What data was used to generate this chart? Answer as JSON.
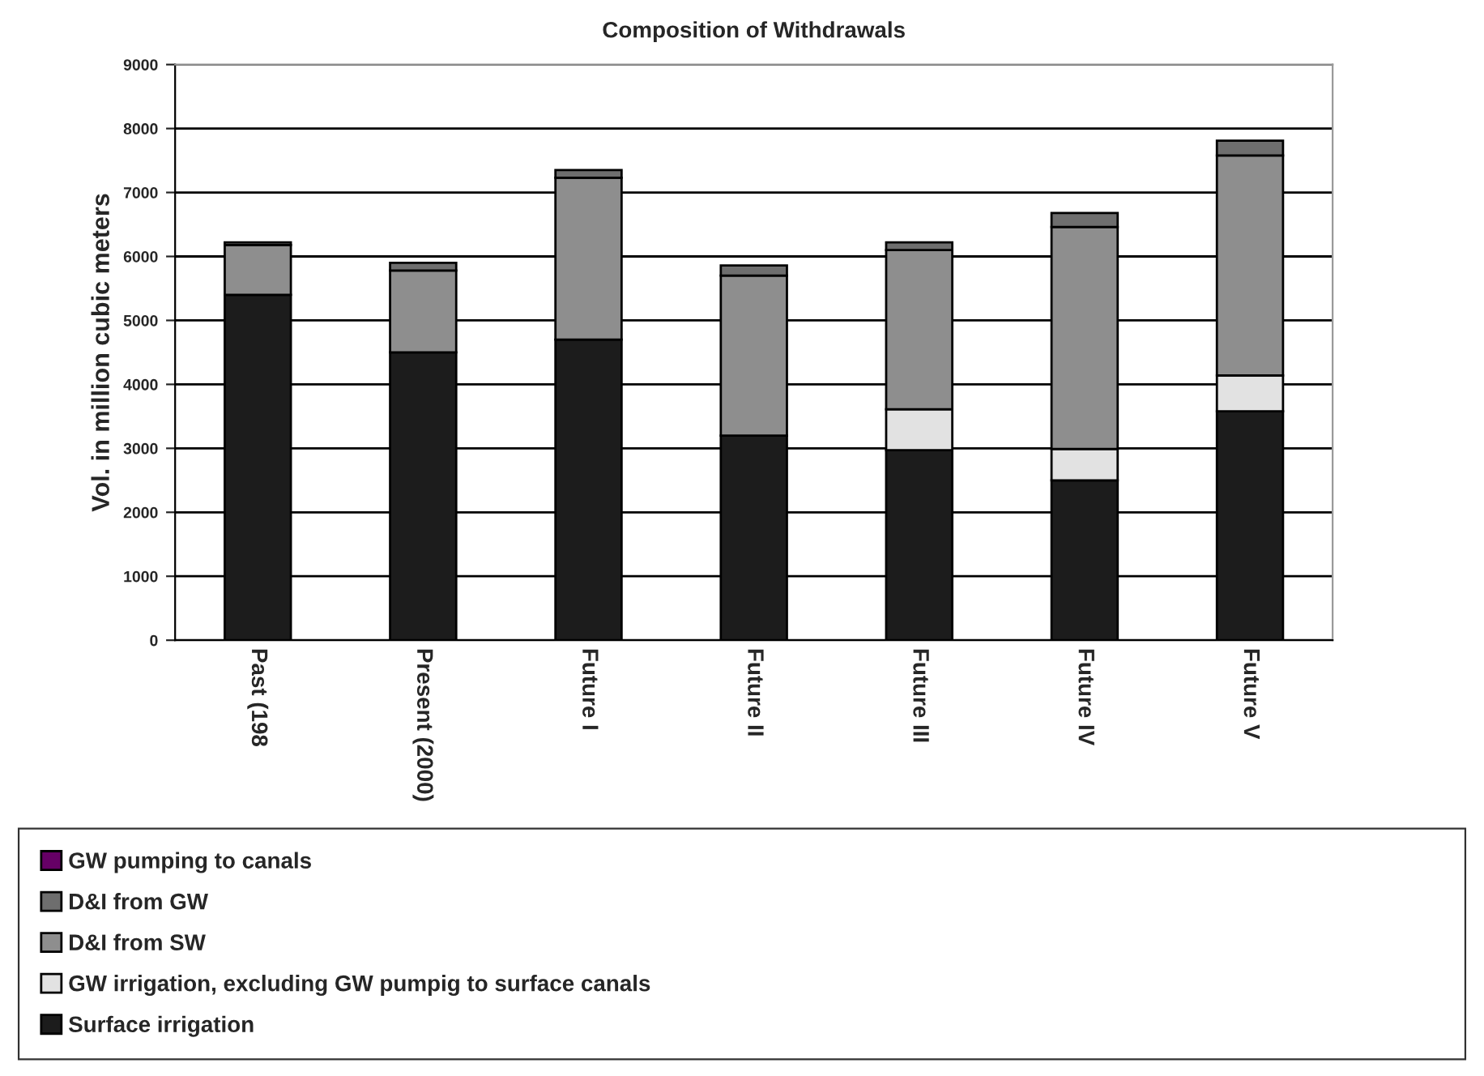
{
  "chart_data": {
    "type": "bar",
    "title": "Composition of Withdrawals",
    "ylabel": "Vol. in million cubic meters",
    "categories": [
      "Past (198",
      "Present (2000)",
      "Future I",
      "Future II",
      "Future III",
      "Future IV",
      "Future V"
    ],
    "stacked": true,
    "series": [
      {
        "name": "Surface irrigation",
        "color": "#1c1c1c",
        "values": [
          5400,
          4500,
          4700,
          3200,
          2970,
          2500,
          3580
        ]
      },
      {
        "name": "GW irrigation, excluding GW pumpig to surface canals",
        "color": "#e2e2e2",
        "values": [
          null,
          null,
          null,
          null,
          640,
          490,
          560
        ]
      },
      {
        "name": "D&I from SW",
        "color": "#8e8e8e",
        "values": [
          780,
          1280,
          2530,
          2500,
          2490,
          3470,
          3440
        ]
      },
      {
        "name": "D&I from GW",
        "color": "#6e6e6e",
        "values": [
          40,
          120,
          120,
          160,
          120,
          220,
          230
        ]
      },
      {
        "name": "GW pumping to canals",
        "color": "#660066",
        "values": [
          null,
          null,
          null,
          null,
          null,
          null,
          null
        ]
      }
    ],
    "ylim": [
      0,
      9000
    ],
    "yticks": [
      0,
      1000,
      2000,
      3000,
      4000,
      5000,
      6000,
      7000,
      8000,
      9000
    ],
    "grid": "y",
    "legend": "bottom"
  }
}
